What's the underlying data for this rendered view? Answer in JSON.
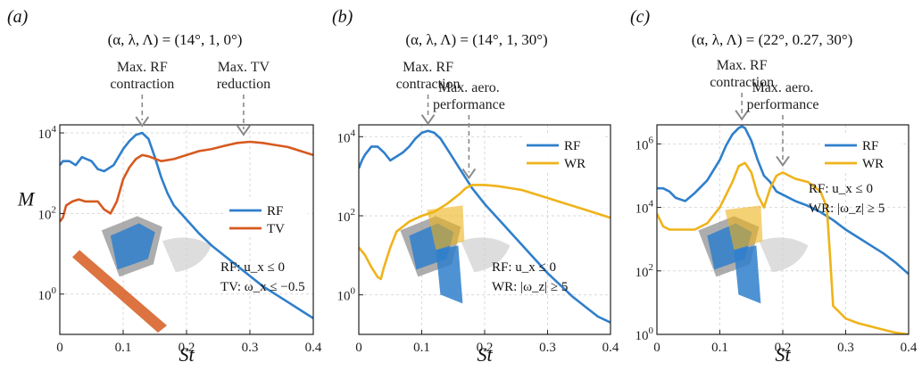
{
  "chart_data": [
    {
      "type": "line",
      "panel_label": "(a)",
      "params": "(α, λ, Λ) = (14°, 1, 0°)",
      "xlabel": "St",
      "ylabel": "M",
      "xlim": [
        0,
        0.4
      ],
      "ylim_log10": [
        -1,
        4.2
      ],
      "yscale": "log",
      "x_ticks": [
        "0",
        "0.1",
        "0.2",
        "0.3",
        "0.4"
      ],
      "y_ticks": [
        "10^0",
        "10^2",
        "10^4"
      ],
      "grid": true,
      "legend_position": "right-middle",
      "annotations": [
        {
          "line1": "Max. RF",
          "line2": "contraction",
          "at_x": 0.13
        },
        {
          "line1": "Max. TV",
          "line2": "reduction",
          "at_x": 0.29
        }
      ],
      "conditions": [
        "RF: u_x ≤ 0",
        "TV: ω_x ≤ −0.5"
      ],
      "series": [
        {
          "name": "RF",
          "color": "#2f7fcb",
          "x": [
            0,
            0.005,
            0.015,
            0.025,
            0.035,
            0.05,
            0.06,
            0.07,
            0.085,
            0.1,
            0.11,
            0.12,
            0.13,
            0.14,
            0.15,
            0.16,
            0.17,
            0.18,
            0.2,
            0.22,
            0.24,
            0.26,
            0.28,
            0.3,
            0.32,
            0.34,
            0.36,
            0.38,
            0.4
          ],
          "log10y": [
            3.2,
            3.3,
            3.3,
            3.2,
            3.4,
            3.3,
            3.1,
            3.05,
            3.2,
            3.6,
            3.8,
            3.95,
            4.0,
            3.85,
            3.4,
            2.9,
            2.5,
            2.2,
            1.85,
            1.5,
            1.2,
            0.95,
            0.7,
            0.45,
            0.2,
            0.0,
            -0.2,
            -0.4,
            -0.6
          ]
        },
        {
          "name": "TV",
          "color": "#d65a1f",
          "x": [
            0,
            0.005,
            0.01,
            0.02,
            0.03,
            0.04,
            0.05,
            0.06,
            0.07,
            0.08,
            0.09,
            0.1,
            0.11,
            0.12,
            0.13,
            0.14,
            0.16,
            0.18,
            0.2,
            0.22,
            0.24,
            0.26,
            0.28,
            0.3,
            0.32,
            0.34,
            0.36,
            0.38,
            0.4
          ],
          "log10y": [
            1.8,
            1.9,
            2.2,
            2.3,
            2.35,
            2.3,
            2.3,
            2.3,
            2.1,
            2.0,
            2.3,
            2.85,
            3.15,
            3.35,
            3.45,
            3.42,
            3.3,
            3.35,
            3.45,
            3.55,
            3.6,
            3.68,
            3.75,
            3.78,
            3.75,
            3.7,
            3.65,
            3.55,
            3.45
          ]
        }
      ]
    },
    {
      "type": "line",
      "panel_label": "(b)",
      "params": "(α, λ, Λ) = (14°, 1, 30°)",
      "xlabel": "St",
      "ylabel": "",
      "xlim": [
        0,
        0.4
      ],
      "ylim_log10": [
        -1,
        4.3
      ],
      "yscale": "log",
      "x_ticks": [
        "0",
        "0.1",
        "0.2",
        "0.3",
        "0.4"
      ],
      "y_ticks": [
        "10^0",
        "10^2",
        "10^4"
      ],
      "grid": true,
      "legend_position": "top-right",
      "annotations": [
        {
          "line1": "Max. RF",
          "line2": "contraction",
          "at_x": 0.11
        },
        {
          "line1": "Max. aero.",
          "line2": "performance",
          "at_x": 0.175
        }
      ],
      "conditions": [
        "RF: u_x ≤ 0",
        "WR: |ω_z| ≥ 5"
      ],
      "series": [
        {
          "name": "RF",
          "color": "#2f7fcb",
          "x": [
            0,
            0.005,
            0.01,
            0.02,
            0.03,
            0.04,
            0.05,
            0.06,
            0.07,
            0.08,
            0.09,
            0.1,
            0.11,
            0.12,
            0.13,
            0.14,
            0.15,
            0.16,
            0.17,
            0.18,
            0.2,
            0.22,
            0.24,
            0.26,
            0.28,
            0.3,
            0.32,
            0.34,
            0.36,
            0.38,
            0.4
          ],
          "log10y": [
            3.2,
            3.4,
            3.55,
            3.75,
            3.75,
            3.6,
            3.4,
            3.5,
            3.6,
            3.75,
            3.95,
            4.1,
            4.15,
            4.1,
            3.95,
            3.7,
            3.45,
            3.2,
            2.95,
            2.7,
            2.3,
            1.95,
            1.6,
            1.25,
            0.9,
            0.55,
            0.25,
            -0.05,
            -0.3,
            -0.55,
            -0.7
          ]
        },
        {
          "name": "WR",
          "color": "#efb31a",
          "x": [
            0,
            0.01,
            0.02,
            0.03,
            0.035,
            0.04,
            0.05,
            0.06,
            0.08,
            0.1,
            0.12,
            0.14,
            0.16,
            0.17,
            0.18,
            0.2,
            0.22,
            0.24,
            0.26,
            0.28,
            0.3,
            0.32,
            0.34,
            0.36,
            0.38,
            0.4
          ],
          "log10y": [
            1.2,
            1.0,
            0.7,
            0.45,
            0.4,
            0.7,
            1.2,
            1.6,
            1.85,
            2.0,
            2.1,
            2.3,
            2.55,
            2.7,
            2.78,
            2.78,
            2.75,
            2.7,
            2.65,
            2.55,
            2.45,
            2.35,
            2.25,
            2.15,
            2.05,
            1.95
          ]
        }
      ]
    },
    {
      "type": "line",
      "panel_label": "(c)",
      "params": "(α, λ, Λ) = (22°, 0.27, 30°)",
      "xlabel": "St",
      "ylabel": "",
      "xlim": [
        0,
        0.4
      ],
      "ylim_log10": [
        0,
        6.6
      ],
      "yscale": "log",
      "x_ticks": [
        "0",
        "0.1",
        "0.2",
        "0.3",
        "0.4"
      ],
      "y_ticks": [
        "10^0",
        "10^2",
        "10^4",
        "10^6"
      ],
      "grid": true,
      "legend_position": "top-right",
      "annotations": [
        {
          "line1": "Max. RF",
          "line2": "contraction",
          "at_x": 0.135
        },
        {
          "line1": "Max. aero.",
          "line2": "performance",
          "at_x": 0.2
        }
      ],
      "conditions": [
        "RF: u_x ≤ 0",
        "WR: |ω_z| ≥ 5"
      ],
      "series": [
        {
          "name": "RF",
          "color": "#2f7fcb",
          "x": [
            0,
            0.01,
            0.02,
            0.03,
            0.045,
            0.06,
            0.08,
            0.1,
            0.11,
            0.12,
            0.13,
            0.135,
            0.14,
            0.15,
            0.16,
            0.17,
            0.18,
            0.19,
            0.2,
            0.22,
            0.24,
            0.26,
            0.28,
            0.3,
            0.32,
            0.34,
            0.36,
            0.38,
            0.4
          ],
          "log10y": [
            4.6,
            4.6,
            4.5,
            4.3,
            4.2,
            4.45,
            4.85,
            5.5,
            5.95,
            6.3,
            6.5,
            6.55,
            6.5,
            6.1,
            5.5,
            5.0,
            4.8,
            4.5,
            4.4,
            4.2,
            4.05,
            3.85,
            3.6,
            3.3,
            3.05,
            2.8,
            2.55,
            2.25,
            1.9
          ]
        },
        {
          "name": "WR",
          "color": "#efb31a",
          "x": [
            0,
            0.01,
            0.02,
            0.04,
            0.06,
            0.08,
            0.1,
            0.12,
            0.13,
            0.14,
            0.15,
            0.16,
            0.17,
            0.18,
            0.19,
            0.2,
            0.21,
            0.22,
            0.24,
            0.26,
            0.27,
            0.275,
            0.28,
            0.3,
            0.32,
            0.34,
            0.36,
            0.38,
            0.4
          ],
          "log10y": [
            3.8,
            3.4,
            3.3,
            3.3,
            3.3,
            3.5,
            4.0,
            4.8,
            5.3,
            5.4,
            5.1,
            4.4,
            4.0,
            4.6,
            5.0,
            5.1,
            5.0,
            4.9,
            4.8,
            4.5,
            4.0,
            2.5,
            0.9,
            0.5,
            0.35,
            0.25,
            0.15,
            0.05,
            0.0
          ]
        }
      ]
    }
  ]
}
